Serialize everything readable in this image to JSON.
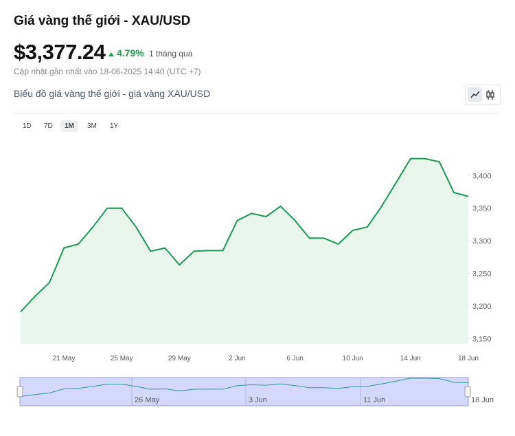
{
  "header": {
    "title": "Giá vàng thế giới - XAU/USD",
    "price": "$3,377.24",
    "change": "4.79%",
    "period": "1 tháng qua",
    "updated": "Cập nhật gần nhất vào 18-06-2025 14:40 (UTC +7)"
  },
  "chart_header": "Biểu đồ giá vàng thế giới - giá vàng XAU/USD",
  "ranges": [
    "1D",
    "7D",
    "1M",
    "3M",
    "1Y"
  ],
  "active_range_index": 2,
  "chart_data": {
    "type": "area",
    "categories": [
      null,
      null,
      null,
      "21 May",
      null,
      null,
      null,
      "25 May",
      null,
      null,
      null,
      "29 May",
      null,
      null,
      null,
      "2 Jun",
      null,
      null,
      null,
      "6 Jun",
      null,
      null,
      null,
      "10 Jun",
      null,
      null,
      null,
      "14 Jun",
      null,
      null,
      null,
      "18 Jun"
    ],
    "series": [
      {
        "color": "#1a9850",
        "fill": "#e9f6ee",
        "values": [
          3191,
          3215,
          3236,
          3289,
          3295,
          3321,
          3350,
          3350,
          3321,
          3284,
          3289,
          3263,
          3284,
          3285,
          3285,
          3331,
          3342,
          3337,
          3353,
          3331,
          3304,
          3304,
          3295,
          3316,
          3321,
          3353,
          3389,
          3426,
          3426,
          3421,
          3374,
          3368
        ]
      }
    ],
    "ylim": [
      3142,
      3453
    ],
    "yticks": [
      {
        "value": 3150,
        "label": "3,150"
      },
      {
        "value": 3200,
        "label": "3,200"
      },
      {
        "value": 3250,
        "label": "3,250"
      },
      {
        "value": 3300,
        "label": "3,300"
      },
      {
        "value": 3350,
        "label": "3,350"
      },
      {
        "value": 3400,
        "label": "3,400"
      }
    ],
    "y_axis_side": "right"
  },
  "navigator": {
    "labels": [
      "26 May",
      "3 Jun",
      "11 Jun",
      "18 Jun"
    ],
    "color": "#2a9d8f"
  }
}
